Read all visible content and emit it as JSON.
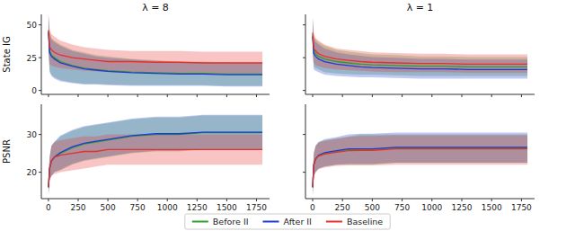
{
  "chart_data": [
    {
      "type": "line",
      "title": "λ = 8",
      "y_label": "State IG",
      "tick_labels": "y",
      "legend": "bottom",
      "x": [
        0,
        10,
        25,
        50,
        100,
        200,
        300,
        400,
        500,
        700,
        900,
        1100,
        1300,
        1500,
        1700,
        1800
      ],
      "xlim": [
        -60,
        1860
      ],
      "xticks": [
        0,
        250,
        500,
        750,
        1000,
        1250,
        1500,
        1750
      ],
      "ylim": [
        -3,
        58
      ],
      "yticks": [
        0,
        25,
        50
      ],
      "series": [
        {
          "name": "Before II",
          "color": "#2ca02c",
          "values": [
            45,
            30,
            27,
            25,
            22,
            19,
            17,
            16,
            15,
            14,
            13.5,
            13,
            13,
            12.5,
            12.5,
            12.5
          ],
          "lower": [
            30,
            15,
            12,
            10,
            8,
            6,
            5,
            5,
            4.5,
            4,
            4,
            4,
            4,
            3.5,
            3.5,
            3.5
          ],
          "upper": [
            58,
            45,
            40,
            38,
            35,
            31,
            29,
            27,
            26,
            24,
            23,
            22,
            22,
            21.5,
            21.5,
            21.5
          ]
        },
        {
          "name": "After II",
          "color": "#1f3bd6",
          "values": [
            44,
            29,
            26,
            24,
            21,
            18.5,
            16.5,
            15.5,
            14.5,
            13.5,
            13,
            12.5,
            12.5,
            12,
            12,
            12
          ],
          "lower": [
            29,
            14,
            11,
            9,
            7,
            5.5,
            4.5,
            4.5,
            4,
            3.5,
            3.5,
            3.5,
            3.5,
            3,
            3,
            3
          ],
          "upper": [
            57,
            44,
            39,
            37,
            34,
            30,
            28,
            26,
            25,
            23.5,
            22.5,
            21.5,
            21.5,
            21,
            21,
            21
          ]
        },
        {
          "name": "Baseline",
          "color": "#e8302a",
          "values": [
            46,
            33,
            31,
            29,
            27,
            25,
            24,
            23,
            22,
            22,
            21.5,
            21.5,
            21,
            21,
            21,
            21
          ],
          "lower": [
            32,
            20,
            19,
            18,
            17,
            16,
            15,
            14.5,
            14,
            13.5,
            13.5,
            13.5,
            13,
            13,
            13,
            13
          ],
          "upper": [
            58,
            46,
            43,
            41,
            38,
            35,
            33,
            32,
            31,
            30,
            30,
            30,
            29.5,
            29.5,
            29.5,
            29.5
          ]
        }
      ]
    },
    {
      "type": "line",
      "title": "λ = 1",
      "tick_labels": false,
      "x": [
        0,
        10,
        25,
        50,
        100,
        200,
        300,
        400,
        500,
        700,
        900,
        1100,
        1300,
        1500,
        1700,
        1800
      ],
      "xlim": [
        -60,
        1860
      ],
      "xticks": [
        0,
        250,
        500,
        750,
        1000,
        1250,
        1500,
        1750
      ],
      "ylim": [
        -3,
        58
      ],
      "yticks": [
        0,
        25,
        50
      ],
      "series": [
        {
          "color": "#2ca02c",
          "values": [
            42,
            30,
            28,
            26,
            24,
            22,
            21,
            20,
            19.5,
            19,
            18.5,
            18.5,
            18,
            18,
            18,
            18
          ],
          "lower": [
            30,
            18,
            17,
            16,
            14,
            13,
            12.5,
            12,
            12,
            11.5,
            11,
            11,
            11,
            11,
            11,
            11
          ],
          "upper": [
            55,
            42,
            39,
            37,
            34,
            31,
            29.5,
            28.5,
            27.5,
            27,
            26,
            26,
            25.5,
            25.5,
            25.5,
            25.5
          ]
        },
        {
          "color": "#1f3bd6",
          "values": [
            41,
            28,
            26,
            24,
            22,
            20,
            19,
            18,
            17.5,
            17,
            16.5,
            16.5,
            16,
            16,
            16,
            16
          ],
          "lower": [
            28,
            16,
            15,
            14,
            12,
            11,
            10.5,
            10,
            10,
            9.5,
            9,
            9,
            9,
            9,
            9,
            9
          ],
          "upper": [
            54,
            40,
            37,
            35,
            32,
            29,
            27.5,
            26.5,
            25.5,
            25,
            24,
            24,
            23.5,
            23.5,
            23.5,
            23.5
          ]
        },
        {
          "color": "#e8302a",
          "values": [
            44,
            32,
            30,
            28,
            26,
            24,
            23,
            22,
            21.5,
            21,
            20.5,
            20.5,
            20,
            20,
            20,
            20
          ],
          "lower": [
            32,
            21,
            19.5,
            18.5,
            17,
            16,
            15.5,
            15,
            14.5,
            14,
            14,
            14,
            13.5,
            13.5,
            13.5,
            13.5
          ],
          "upper": [
            56,
            43,
            40,
            38,
            35,
            32,
            31,
            30,
            29,
            28.5,
            28,
            28,
            27.5,
            27.5,
            27.5,
            27.5
          ]
        }
      ]
    },
    {
      "type": "line",
      "y_label": "PSNR",
      "x": [
        0,
        10,
        25,
        50,
        100,
        200,
        300,
        400,
        500,
        700,
        900,
        1100,
        1300,
        1500,
        1700,
        1800
      ],
      "xlim": [
        -60,
        1860
      ],
      "xticks": [
        0,
        250,
        500,
        750,
        1000,
        1250,
        1500,
        1750
      ],
      "ylim": [
        13,
        38
      ],
      "yticks": [
        20,
        30
      ],
      "series": [
        {
          "color": "#2ca02c",
          "values": [
            16,
            21,
            23,
            24,
            25,
            26.5,
            27.5,
            28,
            28.5,
            29.5,
            30,
            30,
            30.5,
            30.5,
            30.5,
            30.5
          ],
          "lower": [
            14,
            18,
            19,
            20,
            20.5,
            22,
            23,
            23.5,
            24,
            25,
            25.5,
            25.5,
            26,
            26,
            26,
            26
          ],
          "upper": [
            19,
            24,
            27,
            28,
            29.5,
            31,
            32,
            32.5,
            33,
            34,
            34.5,
            34.5,
            35,
            35,
            35,
            35
          ]
        },
        {
          "color": "#1f3bd6",
          "values": [
            16,
            21,
            23,
            24,
            25.2,
            26.7,
            27.7,
            28.2,
            28.7,
            29.7,
            30.2,
            30.2,
            30.6,
            30.6,
            30.6,
            30.6
          ],
          "lower": [
            14,
            18,
            19,
            20,
            20.7,
            22.2,
            23.2,
            23.7,
            24.2,
            25.2,
            25.7,
            25.7,
            26.1,
            26.1,
            26.1,
            26.1
          ],
          "upper": [
            19,
            24,
            27,
            28,
            29.7,
            31.2,
            32.2,
            32.7,
            33.2,
            34.2,
            34.7,
            34.7,
            35.2,
            35.2,
            35.2,
            35.2
          ]
        },
        {
          "color": "#e8302a",
          "values": [
            16,
            21,
            23,
            24,
            24.5,
            25,
            25.5,
            25.5,
            26,
            26,
            26,
            26,
            26,
            26,
            26,
            26
          ],
          "lower": [
            14,
            18,
            19,
            19.5,
            20,
            20.5,
            21,
            21.5,
            22,
            22,
            22,
            22,
            22,
            22,
            22,
            22
          ],
          "upper": [
            19,
            24,
            27,
            28,
            28.5,
            29,
            29.5,
            29.5,
            30,
            30,
            30,
            30,
            30,
            30,
            30,
            30
          ]
        }
      ]
    },
    {
      "type": "line",
      "tick_labels": "x",
      "x": [
        0,
        10,
        25,
        50,
        100,
        200,
        300,
        400,
        500,
        700,
        900,
        1100,
        1300,
        1500,
        1700,
        1800
      ],
      "xlim": [
        -60,
        1860
      ],
      "xticks": [
        0,
        250,
        500,
        750,
        1000,
        1250,
        1500,
        1750
      ],
      "ylim": [
        13,
        38
      ],
      "yticks": [
        20,
        30
      ],
      "series": [
        {
          "color": "#2ca02c",
          "values": [
            16,
            22,
            23.5,
            24.5,
            25,
            25.5,
            26,
            26,
            26,
            26.5,
            26.5,
            26.5,
            26.5,
            26.5,
            26.5,
            26.5
          ],
          "lower": [
            14,
            19,
            20,
            21,
            21.5,
            22,
            22,
            22,
            22,
            22.5,
            22.5,
            22.5,
            22.5,
            22.5,
            22.5,
            22.5
          ],
          "upper": [
            19,
            25,
            27,
            28,
            28.5,
            29,
            29.5,
            30,
            30,
            30,
            30,
            30,
            30,
            30,
            30,
            30
          ]
        },
        {
          "color": "#1f3bd6",
          "values": [
            16,
            22,
            23.5,
            24.5,
            25.2,
            25.7,
            26.2,
            26.2,
            26.2,
            26.6,
            26.6,
            26.6,
            26.6,
            26.6,
            26.6,
            26.6
          ],
          "lower": [
            14,
            19,
            20,
            21,
            21.5,
            22,
            22.2,
            22.2,
            22.2,
            22.5,
            22.5,
            22.5,
            22.5,
            22.5,
            22.5,
            22.5
          ],
          "upper": [
            19,
            25,
            27,
            28,
            28.8,
            29.3,
            30,
            30.2,
            30.2,
            30.5,
            30.5,
            30.5,
            30.5,
            30.5,
            30.5,
            30.5
          ]
        },
        {
          "color": "#e8302a",
          "values": [
            16,
            22,
            23.5,
            24.3,
            24.8,
            25.3,
            25.7,
            25.8,
            25.8,
            26.2,
            26.2,
            26.2,
            26.2,
            26.2,
            26.2,
            26.2
          ],
          "lower": [
            14,
            19,
            20,
            20.8,
            21.2,
            21.7,
            21.8,
            21.8,
            21.8,
            22,
            22,
            22,
            22,
            22,
            22,
            22
          ],
          "upper": [
            19,
            25,
            27,
            27.8,
            28.3,
            28.8,
            29.3,
            29.6,
            29.6,
            29.8,
            29.8,
            29.8,
            29.8,
            29.8,
            29.8,
            29.8
          ]
        }
      ]
    }
  ]
}
